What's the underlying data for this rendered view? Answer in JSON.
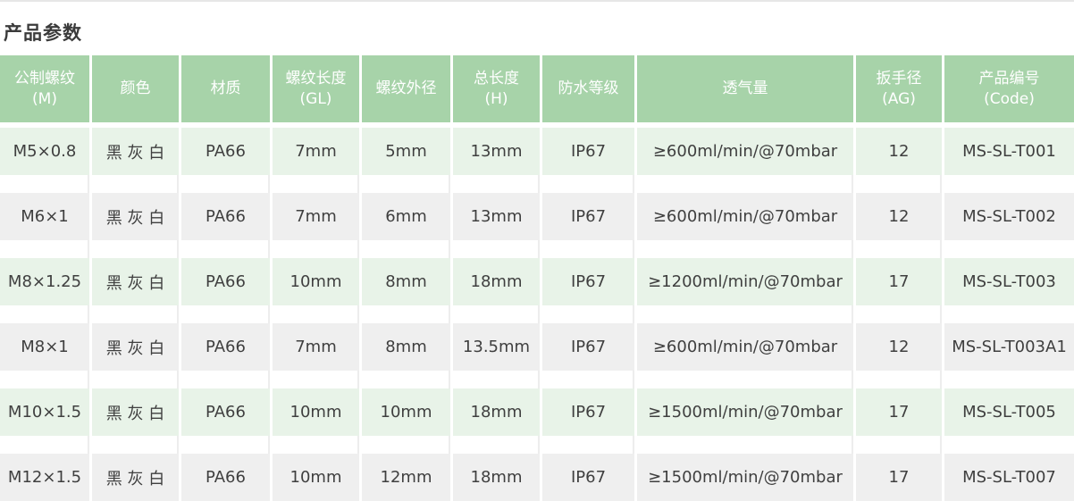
{
  "page": {
    "title": "产品参数"
  },
  "colors": {
    "header_bg": "#a7d3a9",
    "header_text": "#ffffff",
    "row_green": "#e8f3e8",
    "row_gray": "#efefef",
    "body_text": "#3f3f3f",
    "title_text": "#3b3b3b"
  },
  "table": {
    "columns": [
      {
        "id": "metric-thread",
        "label": "公制螺纹\n(M)"
      },
      {
        "id": "color",
        "label": "颜色"
      },
      {
        "id": "material",
        "label": "材质"
      },
      {
        "id": "thread-length",
        "label": "螺纹长度\n(GL)"
      },
      {
        "id": "outer-diameter",
        "label": "螺纹外径"
      },
      {
        "id": "total-length",
        "label": "总长度\n(H)"
      },
      {
        "id": "waterproof",
        "label": "防水等级"
      },
      {
        "id": "airflow",
        "label": "透气量"
      },
      {
        "id": "wrench",
        "label": "扳手径\n(AG)"
      },
      {
        "id": "code",
        "label": "产品编号\n(Code)"
      }
    ],
    "rows": [
      {
        "cells": [
          "M5×0.8",
          "黑 灰 白",
          "PA66",
          "7mm",
          "5mm",
          "13mm",
          "IP67",
          "≥600ml/min/@70mbar",
          "12",
          "MS-SL-T001"
        ]
      },
      {
        "cells": [
          "M6×1",
          "黑 灰 白",
          "PA66",
          "7mm",
          "6mm",
          "13mm",
          "IP67",
          "≥600ml/min/@70mbar",
          "12",
          "MS-SL-T002"
        ]
      },
      {
        "cells": [
          "M8×1.25",
          "黑 灰 白",
          "PA66",
          "10mm",
          "8mm",
          "18mm",
          "IP67",
          "≥1200ml/min/@70mbar",
          "17",
          "MS-SL-T003"
        ]
      },
      {
        "cells": [
          "M8×1",
          "黑 灰 白",
          "PA66",
          "7mm",
          "8mm",
          "13.5mm",
          "IP67",
          "≥600ml/min/@70mbar",
          "12",
          "MS-SL-T003A1"
        ]
      },
      {
        "cells": [
          "M10×1.5",
          "黑 灰 白",
          "PA66",
          "10mm",
          "10mm",
          "18mm",
          "IP67",
          "≥1500ml/min/@70mbar",
          "17",
          "MS-SL-T005"
        ]
      },
      {
        "cells": [
          "M12×1.5",
          "黑 灰 白",
          "PA66",
          "10mm",
          "12mm",
          "18mm",
          "IP67",
          "≥1500ml/min/@70mbar",
          "17",
          "MS-SL-T007"
        ]
      }
    ]
  }
}
